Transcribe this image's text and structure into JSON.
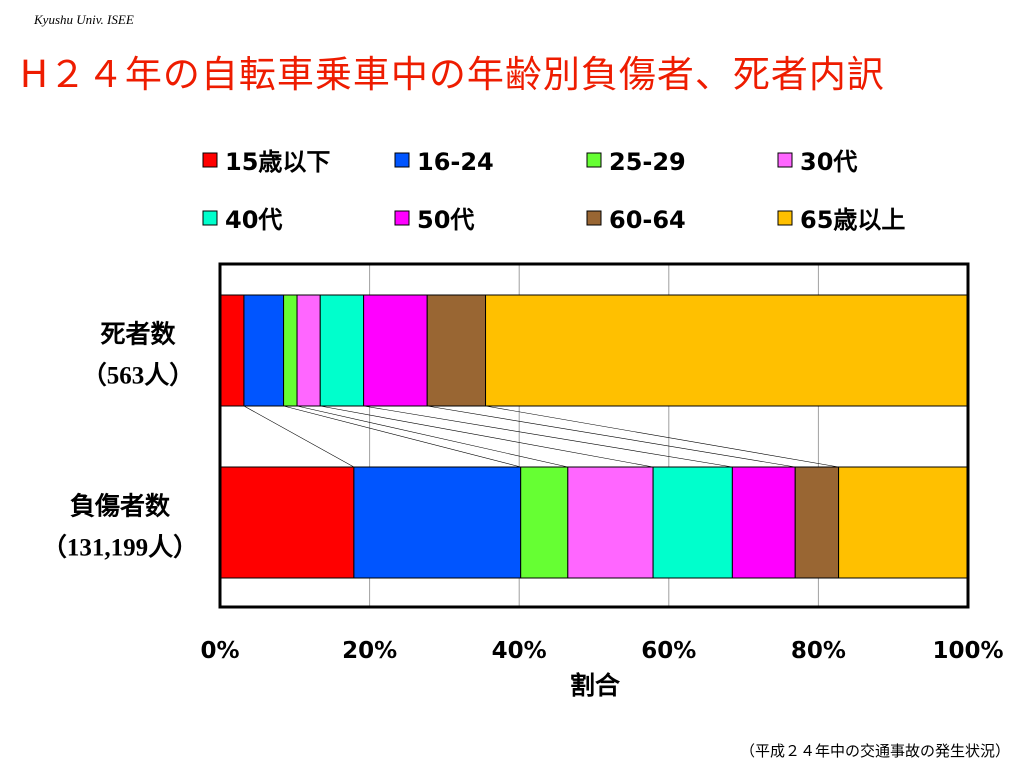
{
  "header": {
    "credit": "Kyushu Univ. ISEE",
    "title": "H２４年の自転車乗車中の年齢別負傷者、死者内訳"
  },
  "footer": {
    "source": "（平成２４年中の交通事故の発生状況）"
  },
  "chart_data": {
    "type": "bar",
    "orientation": "horizontal",
    "stacked": "100%",
    "xlabel": "割合",
    "xlim": [
      0,
      100
    ],
    "ticks": [
      "0%",
      "20%",
      "40%",
      "60%",
      "80%",
      "100%"
    ],
    "grid": true,
    "legend_position": "top",
    "categories": [
      {
        "label": "死者数",
        "sublabel": "（563人）"
      },
      {
        "label": "負傷者数",
        "sublabel": "（131,199人）"
      }
    ],
    "series": [
      {
        "name": "15歳以下",
        "color": "#ff0000",
        "values": [
          3.2,
          17.9
        ]
      },
      {
        "name": "16-24",
        "color": "#0055ff",
        "values": [
          5.3,
          22.3
        ]
      },
      {
        "name": "25-29",
        "color": "#66ff33",
        "values": [
          1.8,
          6.3
        ]
      },
      {
        "name": "30代",
        "color": "#ff66ff",
        "values": [
          3.1,
          11.4
        ]
      },
      {
        "name": "40代",
        "color": "#00ffcc",
        "values": [
          5.8,
          10.6
        ]
      },
      {
        "name": "50代",
        "color": "#ff00ff",
        "values": [
          8.5,
          8.4
        ]
      },
      {
        "name": "60-64",
        "color": "#996633",
        "values": [
          7.8,
          5.8
        ]
      },
      {
        "name": "65歳以上",
        "color": "#ffc000",
        "values": [
          64.5,
          17.3
        ]
      }
    ]
  }
}
